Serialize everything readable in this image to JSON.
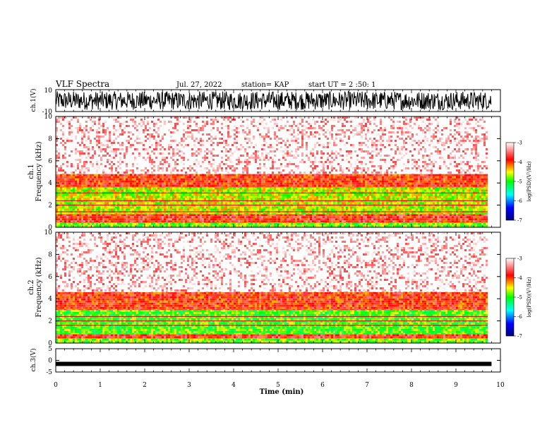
{
  "header": {
    "title": "VLF Spectra",
    "date": "Jul. 27, 2022",
    "station": "station= KAP",
    "start": "start UT = 2 :50: 1"
  },
  "chart_data": [
    {
      "type": "line",
      "ylabel": "ch.1(V)",
      "ylim": [
        -10,
        10
      ],
      "ytick_labels": [
        "10",
        "-10"
      ],
      "description": "broadband waveform, amplitude roughly spanning -10 to 10 V",
      "x": [
        0,
        9.8
      ]
    },
    {
      "type": "heatmap",
      "ylabel": "ch.1\nFrequency (kHz)",
      "ylim": [
        0,
        10
      ],
      "yticks": [
        0,
        2,
        4,
        6,
        8,
        10
      ],
      "bands_khz": [
        {
          "from": 0.0,
          "to": 0.4,
          "level": -4.8,
          "note": "mixed white/orange"
        },
        {
          "from": 0.4,
          "to": 1.2,
          "level": -3.8
        },
        {
          "from": 1.2,
          "to": 3.6,
          "level": -4.6,
          "note": "yellow/green"
        },
        {
          "from": 3.6,
          "to": 4.8,
          "level": -3.9
        },
        {
          "from": 4.8,
          "to": 10.0,
          "level": -3.2,
          "note": "speckled red/white"
        }
      ],
      "lines_khz": [
        1.4,
        2.0,
        2.4,
        3.1
      ],
      "colorbar": {
        "label": "log(PSD)(V²/Hz)",
        "ticks": [
          -3,
          -4,
          -5,
          -6,
          -7
        ],
        "range": [
          -7,
          -3
        ],
        "colors": [
          "#000080",
          "#0000ff",
          "#00ffff",
          "#00ff00",
          "#ffff00",
          "#ff0000",
          "#ffffff"
        ]
      }
    },
    {
      "type": "heatmap",
      "ylabel": "ch.2\nFrequency (kHz)",
      "ylim": [
        0,
        10
      ],
      "yticks": [
        0,
        2,
        4,
        6,
        8,
        10
      ],
      "bands_khz": [
        {
          "from": 0.0,
          "to": 0.4,
          "level": -4.8,
          "note": "mixed white/orange"
        },
        {
          "from": 0.4,
          "to": 0.8,
          "level": -3.8
        },
        {
          "from": 0.8,
          "to": 3.0,
          "level": -4.9,
          "note": "green/yellow"
        },
        {
          "from": 3.0,
          "to": 4.6,
          "level": -3.9
        },
        {
          "from": 4.6,
          "to": 10.0,
          "level": -3.2,
          "note": "speckled red/white"
        }
      ],
      "lines_khz": [
        1.6,
        2.0,
        2.4
      ],
      "colorbar": {
        "label": "log(PSD)(V²/Hz)",
        "ticks": [
          -3,
          -4,
          -5,
          -6,
          -7
        ],
        "range": [
          -7,
          -3
        ],
        "colors": [
          "#000080",
          "#0000ff",
          "#00ffff",
          "#00ff00",
          "#ffff00",
          "#ff0000",
          "#ffffff"
        ]
      }
    },
    {
      "type": "line",
      "ylabel": "ch.3(V)",
      "ylim": [
        -5,
        5
      ],
      "yticks": [
        -5,
        0,
        5
      ],
      "description": "thick flat trace near -1.5 V",
      "level": -1.5,
      "xlabel": "Time (min)",
      "xlim": [
        0,
        10
      ],
      "xticks": [
        0,
        1,
        2,
        3,
        4,
        5,
        6,
        7,
        8,
        9,
        10
      ],
      "data_end": 9.8
    }
  ]
}
